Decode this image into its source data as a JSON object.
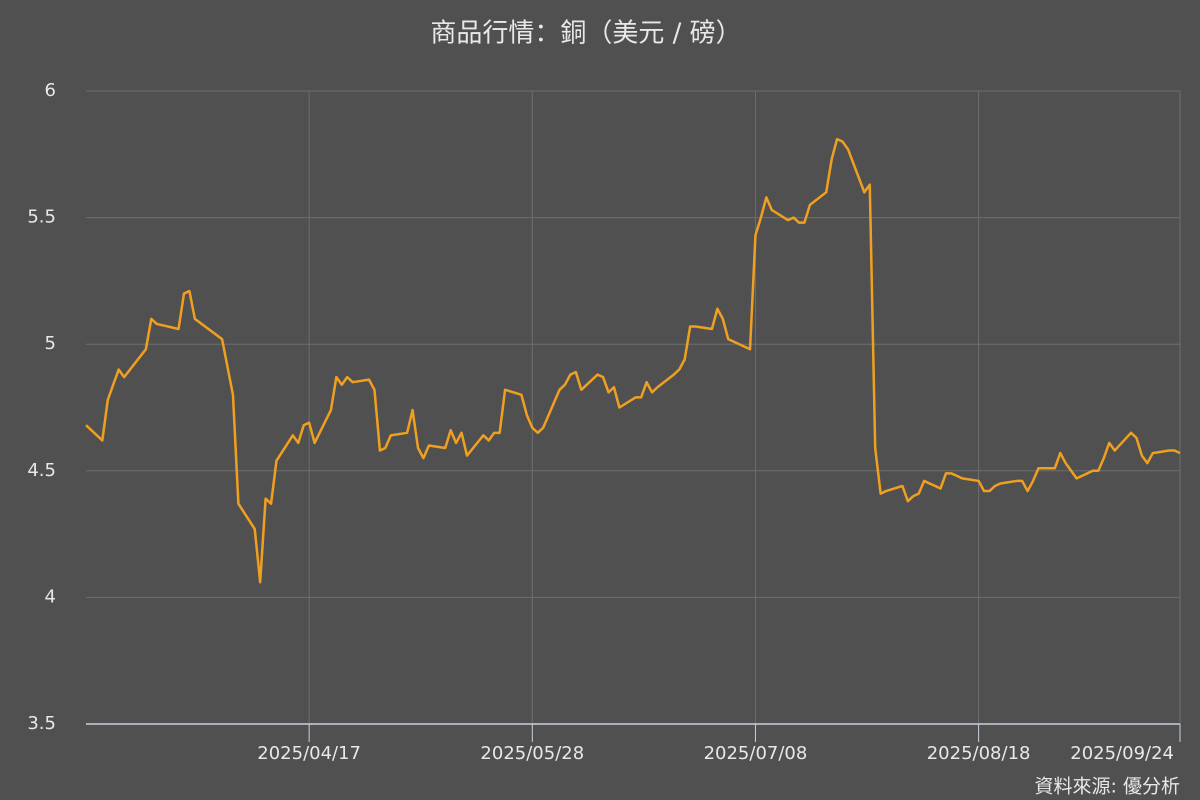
{
  "chart_data": {
    "type": "line",
    "title": "商品行情：銅（美元 / 磅）",
    "source": "資料來源: 優分析",
    "x": [
      "2025/03/07",
      "2025/03/10",
      "2025/03/11",
      "2025/03/13",
      "2025/03/14",
      "2025/03/18",
      "2025/03/19",
      "2025/03/20",
      "2025/03/24",
      "2025/03/25",
      "2025/03/26",
      "2025/03/27",
      "2025/04/01",
      "2025/04/03",
      "2025/04/04",
      "2025/04/07",
      "2025/04/08",
      "2025/04/09",
      "2025/04/10",
      "2025/04/11",
      "2025/04/14",
      "2025/04/15",
      "2025/04/16",
      "2025/04/17",
      "2025/04/18",
      "2025/04/21",
      "2025/04/22",
      "2025/04/23",
      "2025/04/24",
      "2025/04/25",
      "2025/04/28",
      "2025/04/29",
      "2025/04/30",
      "2025/05/01",
      "2025/05/02",
      "2025/05/05",
      "2025/05/06",
      "2025/05/07",
      "2025/05/08",
      "2025/05/09",
      "2025/05/12",
      "2025/05/13",
      "2025/05/14",
      "2025/05/15",
      "2025/05/16",
      "2025/05/19",
      "2025/05/20",
      "2025/05/21",
      "2025/05/22",
      "2025/05/23",
      "2025/05/26",
      "2025/05/27",
      "2025/05/28",
      "2025/05/29",
      "2025/05/30",
      "2025/06/02",
      "2025/06/03",
      "2025/06/04",
      "2025/06/05",
      "2025/06/06",
      "2025/06/09",
      "2025/06/10",
      "2025/06/11",
      "2025/06/12",
      "2025/06/13",
      "2025/06/16",
      "2025/06/17",
      "2025/06/18",
      "2025/06/19",
      "2025/06/20",
      "2025/06/23",
      "2025/06/24",
      "2025/06/25",
      "2025/06/26",
      "2025/06/27",
      "2025/06/30",
      "2025/07/01",
      "2025/07/02",
      "2025/07/03",
      "2025/07/07",
      "2025/07/08",
      "2025/07/09",
      "2025/07/10",
      "2025/07/11",
      "2025/07/14",
      "2025/07/15",
      "2025/07/16",
      "2025/07/17",
      "2025/07/18",
      "2025/07/21",
      "2025/07/22",
      "2025/07/23",
      "2025/07/24",
      "2025/07/25",
      "2025/07/28",
      "2025/07/29",
      "2025/07/30",
      "2025/07/31",
      "2025/08/01",
      "2025/08/04",
      "2025/08/05",
      "2025/08/06",
      "2025/08/07",
      "2025/08/08",
      "2025/08/11",
      "2025/08/12",
      "2025/08/13",
      "2025/08/14",
      "2025/08/15",
      "2025/08/18",
      "2025/08/19",
      "2025/08/20",
      "2025/08/21",
      "2025/08/22",
      "2025/08/25",
      "2025/08/26",
      "2025/08/27",
      "2025/08/28",
      "2025/08/29",
      "2025/09/01",
      "2025/09/02",
      "2025/09/03",
      "2025/09/05",
      "2025/09/08",
      "2025/09/09",
      "2025/09/10",
      "2025/09/11",
      "2025/09/12",
      "2025/09/15",
      "2025/09/16",
      "2025/09/17",
      "2025/09/18",
      "2025/09/19",
      "2025/09/22",
      "2025/09/23",
      "2025/09/24"
    ],
    "series": [
      {
        "name": "銅",
        "color": "#f0a020",
        "values": [
          4.68,
          4.62,
          4.78,
          4.9,
          4.87,
          4.98,
          5.1,
          5.08,
          5.06,
          5.2,
          5.21,
          5.1,
          5.02,
          4.8,
          4.37,
          4.27,
          4.06,
          4.39,
          4.37,
          4.54,
          4.64,
          4.61,
          4.68,
          4.69,
          4.61,
          4.74,
          4.87,
          4.84,
          4.87,
          4.85,
          4.86,
          4.82,
          4.58,
          4.59,
          4.64,
          4.65,
          4.74,
          4.59,
          4.55,
          4.6,
          4.59,
          4.66,
          4.61,
          4.65,
          4.56,
          4.64,
          4.62,
          4.65,
          4.65,
          4.82,
          4.8,
          4.72,
          4.67,
          4.65,
          4.67,
          4.82,
          4.84,
          4.88,
          4.89,
          4.82,
          4.88,
          4.87,
          4.81,
          4.83,
          4.75,
          4.79,
          4.79,
          4.85,
          4.81,
          4.83,
          4.88,
          4.9,
          4.94,
          5.07,
          5.07,
          5.06,
          5.14,
          5.1,
          5.02,
          4.98,
          5.43,
          5.5,
          5.58,
          5.53,
          5.49,
          5.5,
          5.48,
          5.48,
          5.55,
          5.6,
          5.73,
          5.81,
          5.8,
          5.77,
          5.6,
          5.63,
          4.59,
          4.41,
          4.42,
          4.44,
          4.38,
          4.4,
          4.41,
          4.46,
          4.43,
          4.49,
          4.49,
          4.48,
          4.47,
          4.46,
          4.42,
          4.42,
          4.44,
          4.45,
          4.46,
          4.46,
          4.42,
          4.46,
          4.51,
          4.51,
          4.57,
          4.53,
          4.47,
          4.5,
          4.5,
          4.55,
          4.61,
          4.58,
          4.65,
          4.63,
          4.56,
          4.53,
          4.57,
          4.58,
          4.58,
          4.57
        ]
      }
    ],
    "xlim": [
      "2025/03/07",
      "2025/09/24"
    ],
    "xticks": [
      "2025/04/17",
      "2025/05/28",
      "2025/07/08",
      "2025/08/18",
      "2025/09/24"
    ],
    "ylim": [
      3.5,
      6
    ],
    "yticks": [
      3.5,
      4,
      4.5,
      5,
      5.5,
      6
    ],
    "grid": true
  }
}
